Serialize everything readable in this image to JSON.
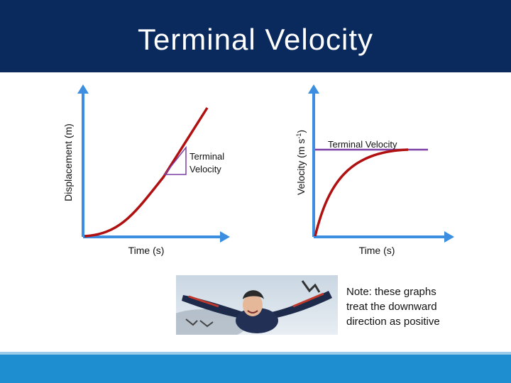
{
  "slide": {
    "title": "Terminal Velocity",
    "colors": {
      "header": "#0a2a5e",
      "footer": "#1f8ed0",
      "axis": "#3b8ee0",
      "curve": "#b01010",
      "tangent": "#7b3fa6",
      "terminal_line": "#7b3fa6"
    }
  },
  "graph_left": {
    "ylabel": "Displacement (m)",
    "xlabel": "Time (s)",
    "annotation_line1": "Terminal",
    "annotation_line2": "Velocity"
  },
  "graph_right": {
    "ylabel_main": "Velocity (m s",
    "ylabel_sup": "-1",
    "ylabel_close": ")",
    "xlabel": "Time (s)",
    "annotation": "Terminal Velocity"
  },
  "note": {
    "line1": "Note: these graphs",
    "line2": "treat the downward",
    "line3": "direction as positive"
  },
  "photo": {
    "icon": "skydiver-photo"
  }
}
